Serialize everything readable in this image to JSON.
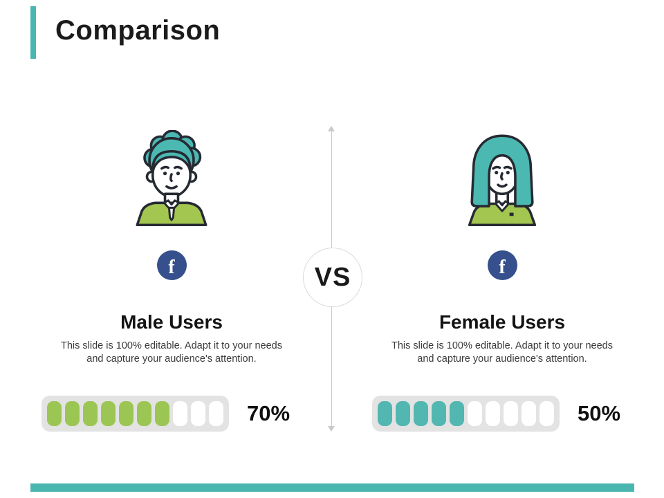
{
  "slide": {
    "title": "Comparison",
    "vs_label": "VS",
    "accent_color": "#4ab6b0",
    "facebook_color": "#35508d",
    "columns": [
      {
        "id": "male",
        "avatar": "male-user-avatar",
        "social_icon": "facebook-icon",
        "social_letter": "f",
        "heading": "Male Users",
        "description": "This slide is 100% editable. Adapt it to your needs and capture your audience's attention.",
        "percent_label": "70%",
        "progress": {
          "filled": 7,
          "total": 10,
          "fill_color": "#9cc653"
        }
      },
      {
        "id": "female",
        "avatar": "female-user-avatar",
        "social_icon": "facebook-icon",
        "social_letter": "f",
        "heading": "Female Users",
        "description": "This slide is 100% editable. Adapt it to your needs and capture your audience's attention.",
        "percent_label": "50%",
        "progress": {
          "filled": 5,
          "total": 10,
          "fill_color": "#52b7b1"
        }
      }
    ]
  }
}
